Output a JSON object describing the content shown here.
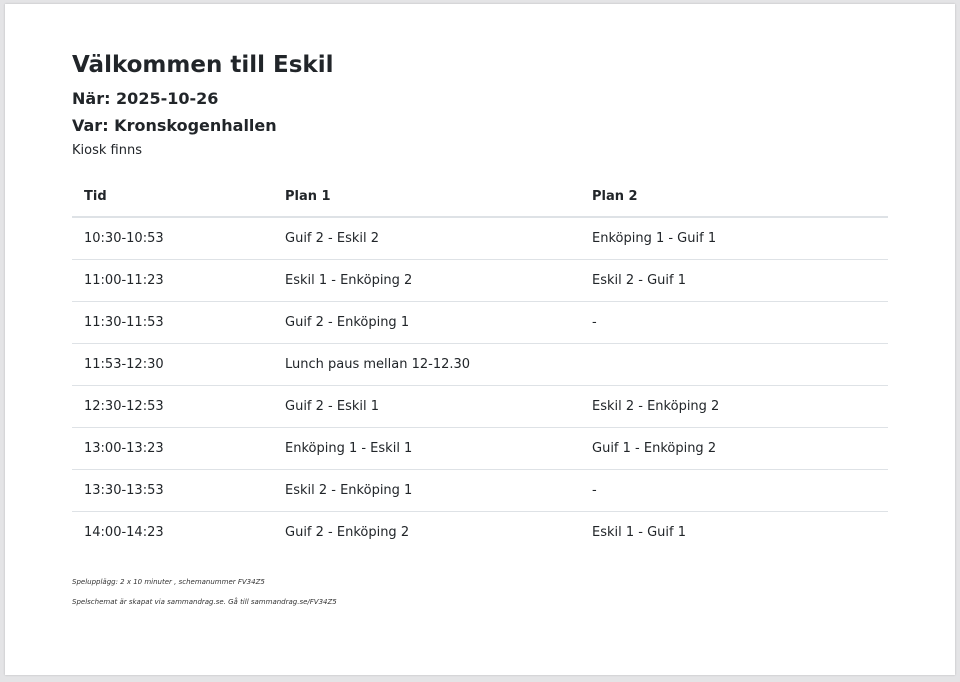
{
  "title": "Välkommen till Eskil",
  "when": "När: 2025-10-26",
  "where": "Var: Kronskogenhallen",
  "kiosk": "Kiosk finns",
  "table": {
    "headers": [
      "Tid",
      "Plan 1",
      "Plan 2"
    ],
    "rows": [
      [
        "10:30-10:53",
        "Guif 2 - Eskil 2",
        "Enköping 1 - Guif 1"
      ],
      [
        "11:00-11:23",
        "Eskil 1 - Enköping 2",
        "Eskil 2 - Guif 1"
      ],
      [
        "11:30-11:53",
        "Guif 2 - Enköping 1",
        "-"
      ],
      [
        "11:53-12:30",
        "Lunch paus mellan 12-12.30",
        ""
      ],
      [
        "12:30-12:53",
        "Guif 2 - Eskil 1",
        "Eskil 2 - Enköping 2"
      ],
      [
        "13:00-13:23",
        "Enköping 1 - Eskil 1",
        "Guif 1 - Enköping 2"
      ],
      [
        "13:30-13:53",
        "Eskil 2 - Enköping 1",
        "-"
      ],
      [
        "14:00-14:23",
        "Guif 2 - Enköping 2",
        "Eskil 1 - Guif 1"
      ]
    ]
  },
  "footer": {
    "line1": "Spelupplägg: 2 x 10 minuter , schemanummer FV34Z5",
    "line2": "Spelschemat är skapat via sammandrag.se. Gå till sammandrag.se/FV34Z5"
  }
}
